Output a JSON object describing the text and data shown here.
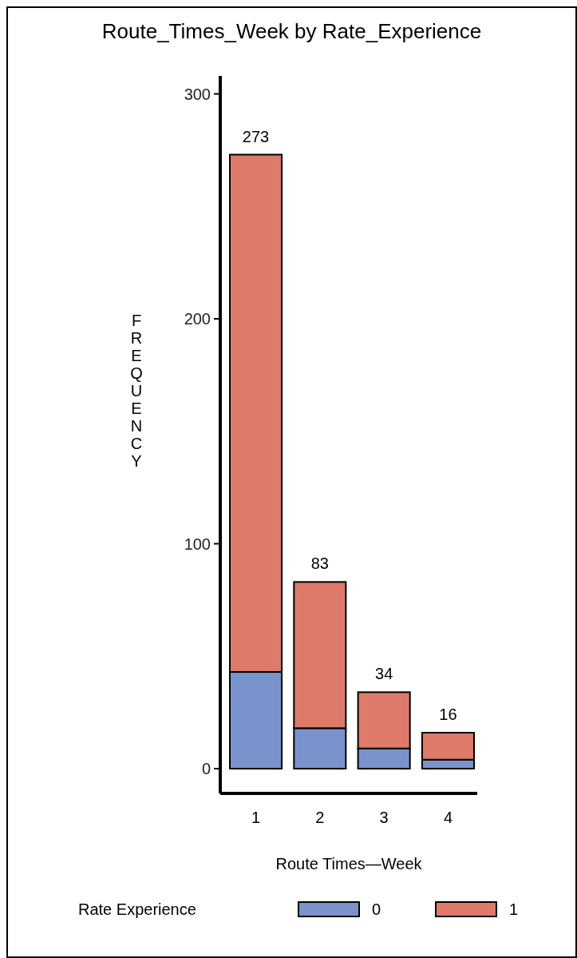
{
  "chart_data": {
    "type": "bar",
    "title": "Route_Times_Week by Rate_Experience",
    "xlabel": "Route Times—Week",
    "ylabel": "FREQUENCY",
    "legend_title": "Rate Experience",
    "categories": [
      "1",
      "2",
      "3",
      "4"
    ],
    "stacked": true,
    "series": [
      {
        "name": "0",
        "color": "#7b93cc",
        "values": [
          43,
          18,
          9,
          4
        ]
      },
      {
        "name": "1",
        "color": "#de7a6a",
        "values": [
          230,
          65,
          25,
          12
        ]
      }
    ],
    "totals": [
      "273",
      "83",
      "34",
      "16"
    ],
    "ylim": [
      -11,
      308
    ],
    "yticks": [
      0,
      100,
      200,
      300
    ],
    "legend": "bottom",
    "grid": false
  }
}
